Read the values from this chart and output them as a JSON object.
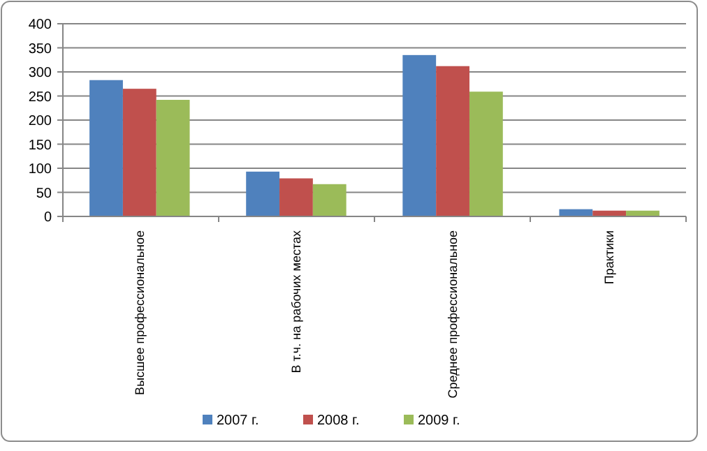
{
  "chart_data": {
    "type": "bar",
    "categories": [
      "Высшее профессиональное",
      "В т.ч. на рабочих местах",
      "Среднее профессиональное",
      "Практики"
    ],
    "series": [
      {
        "name": "2007 г.",
        "color": "#4f81bd",
        "values": [
          283,
          93,
          335,
          15
        ]
      },
      {
        "name": "2008 г.",
        "color": "#c0504d",
        "values": [
          265,
          79,
          312,
          12
        ]
      },
      {
        "name": "2009 г.",
        "color": "#9bbb59",
        "values": [
          242,
          67,
          259,
          12
        ]
      }
    ],
    "ylim": [
      0,
      400
    ],
    "yticks": [
      0,
      50,
      100,
      150,
      200,
      250,
      300,
      350,
      400
    ],
    "grid": "y",
    "legend": "bottom"
  }
}
